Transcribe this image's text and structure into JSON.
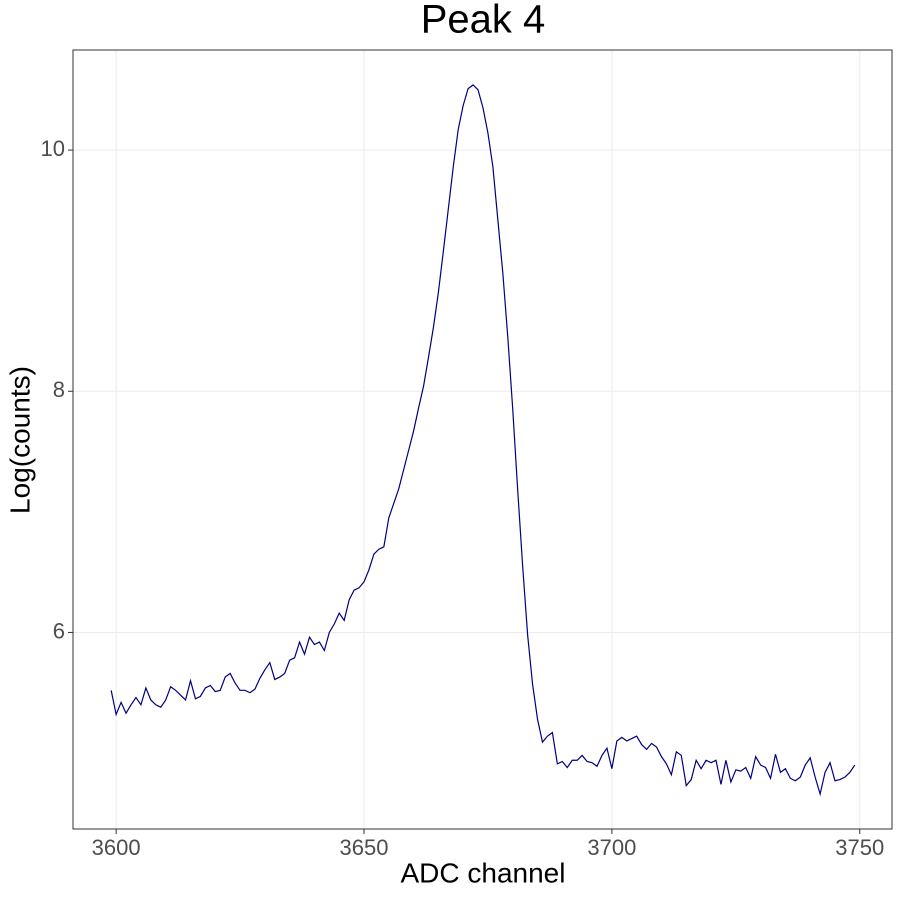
{
  "chart_data": {
    "type": "line",
    "title": "Peak 4",
    "xlabel": "ADC channel",
    "ylabel": "Log(counts)",
    "x": [
      3599,
      3600,
      3601,
      3602,
      3603,
      3604,
      3605,
      3606,
      3607,
      3608,
      3609,
      3610,
      3611,
      3612,
      3613,
      3614,
      3615,
      3616,
      3617,
      3618,
      3619,
      3620,
      3621,
      3622,
      3623,
      3624,
      3625,
      3626,
      3627,
      3628,
      3629,
      3630,
      3631,
      3632,
      3633,
      3634,
      3635,
      3636,
      3637,
      3638,
      3639,
      3640,
      3641,
      3642,
      3643,
      3644,
      3645,
      3646,
      3647,
      3648,
      3649,
      3650,
      3651,
      3652,
      3653,
      3654,
      3655,
      3656,
      3657,
      3658,
      3659,
      3660,
      3661,
      3662,
      3663,
      3664,
      3665,
      3666,
      3667,
      3668,
      3669,
      3670,
      3671,
      3672,
      3673,
      3674,
      3675,
      3676,
      3677,
      3678,
      3679,
      3680,
      3681,
      3682,
      3683,
      3684,
      3685,
      3686,
      3687,
      3688,
      3689,
      3690,
      3691,
      3692,
      3693,
      3694,
      3695,
      3696,
      3697,
      3698,
      3699,
      3700,
      3701,
      3702,
      3703,
      3704,
      3705,
      3706,
      3707,
      3708,
      3709,
      3710,
      3711,
      3712,
      3713,
      3714,
      3715,
      3716,
      3717,
      3718,
      3719,
      3720,
      3721,
      3722,
      3723,
      3724,
      3725,
      3726,
      3727,
      3728,
      3729,
      3730,
      3731,
      3732,
      3733,
      3734,
      3735,
      3736,
      3737,
      3738,
      3739,
      3740,
      3741,
      3742,
      3743,
      3744,
      3745,
      3746,
      3747,
      3748,
      3749
    ],
    "series": [
      {
        "name": "Log(counts)",
        "color": "#000080",
        "values": [
          5.52,
          5.32,
          5.42,
          5.33,
          5.4,
          5.46,
          5.4,
          5.54,
          5.44,
          5.4,
          5.38,
          5.44,
          5.55,
          5.52,
          5.48,
          5.44,
          5.6,
          5.45,
          5.47,
          5.54,
          5.56,
          5.51,
          5.52,
          5.63,
          5.66,
          5.58,
          5.52,
          5.52,
          5.5,
          5.53,
          5.62,
          5.69,
          5.75,
          5.61,
          5.63,
          5.66,
          5.77,
          5.79,
          5.92,
          5.82,
          5.96,
          5.9,
          5.92,
          5.85,
          6.0,
          6.07,
          6.16,
          6.1,
          6.27,
          6.35,
          6.37,
          6.42,
          6.52,
          6.65,
          6.69,
          6.71,
          6.95,
          7.07,
          7.19,
          7.35,
          7.51,
          7.67,
          7.86,
          8.04,
          8.28,
          8.53,
          8.82,
          9.16,
          9.51,
          9.86,
          10.17,
          10.37,
          10.51,
          10.54,
          10.5,
          10.35,
          10.14,
          9.86,
          9.42,
          8.98,
          8.45,
          7.85,
          7.18,
          6.55,
          5.98,
          5.57,
          5.28,
          5.09,
          5.14,
          5.17,
          4.91,
          4.93,
          4.88,
          4.94,
          4.94,
          4.98,
          4.93,
          4.92,
          4.89,
          4.98,
          5.04,
          4.87,
          5.1,
          5.13,
          5.1,
          5.12,
          5.14,
          5.07,
          5.03,
          5.08,
          5.05,
          4.97,
          4.91,
          4.82,
          5.01,
          4.98,
          4.73,
          4.78,
          4.94,
          4.87,
          4.94,
          4.92,
          4.94,
          4.74,
          4.94,
          4.76,
          4.86,
          4.85,
          4.88,
          4.79,
          4.97,
          4.9,
          4.88,
          4.79,
          4.99,
          4.84,
          4.87,
          4.79,
          4.77,
          4.8,
          4.9,
          4.96,
          4.8,
          4.66,
          4.84,
          4.92,
          4.77,
          4.78,
          4.8,
          4.84,
          4.9
        ]
      }
    ],
    "xlim": [
      3591.3,
      3756.5
    ],
    "xticks": [
      3600,
      3650,
      3700,
      3750
    ],
    "ylim": [
      4.37,
      10.83
    ],
    "yticks": [
      6,
      8,
      10
    ],
    "grid": true
  }
}
